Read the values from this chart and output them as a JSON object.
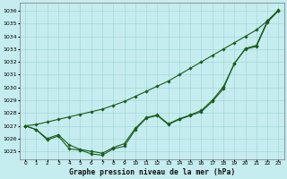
{
  "xlabel": "Graphe pression niveau de la mer (hPa)",
  "ylim": [
    1024.4,
    1036.6
  ],
  "xlim": [
    -0.5,
    23.5
  ],
  "yticks": [
    1025,
    1026,
    1027,
    1028,
    1029,
    1030,
    1031,
    1032,
    1033,
    1034,
    1035,
    1036
  ],
  "xticks": [
    0,
    1,
    2,
    3,
    4,
    5,
    6,
    7,
    8,
    9,
    10,
    11,
    12,
    13,
    14,
    15,
    16,
    17,
    18,
    19,
    20,
    21,
    22,
    23
  ],
  "background_color": "#c5ecee",
  "grid_color": "#9fd4d8",
  "line_color": "#1a5c1a",
  "line_smooth": [
    1027.0,
    1027.1,
    1027.3,
    1027.5,
    1027.7,
    1027.9,
    1028.1,
    1028.3,
    1028.6,
    1028.9,
    1029.3,
    1029.7,
    1030.1,
    1030.5,
    1031.0,
    1031.5,
    1032.0,
    1032.5,
    1033.0,
    1033.5,
    1034.0,
    1034.5,
    1035.2,
    1036.0
  ],
  "line_low": [
    1027.0,
    1026.7,
    1025.9,
    1026.2,
    1025.2,
    1025.1,
    1024.8,
    1024.7,
    1025.2,
    1025.4,
    1026.7,
    1027.6,
    1027.8,
    1027.1,
    1027.5,
    1027.8,
    1028.1,
    1028.9,
    1029.9,
    1031.9,
    1033.0,
    1033.2,
    1035.1,
    1036.0
  ],
  "line_mid": [
    1027.0,
    1026.7,
    1026.0,
    1026.3,
    1025.5,
    1025.15,
    1025.0,
    1024.85,
    1025.3,
    1025.6,
    1026.8,
    1027.65,
    1027.85,
    1027.15,
    1027.55,
    1027.85,
    1028.2,
    1029.0,
    1030.05,
    1031.85,
    1033.05,
    1033.3,
    1035.2,
    1036.05
  ]
}
